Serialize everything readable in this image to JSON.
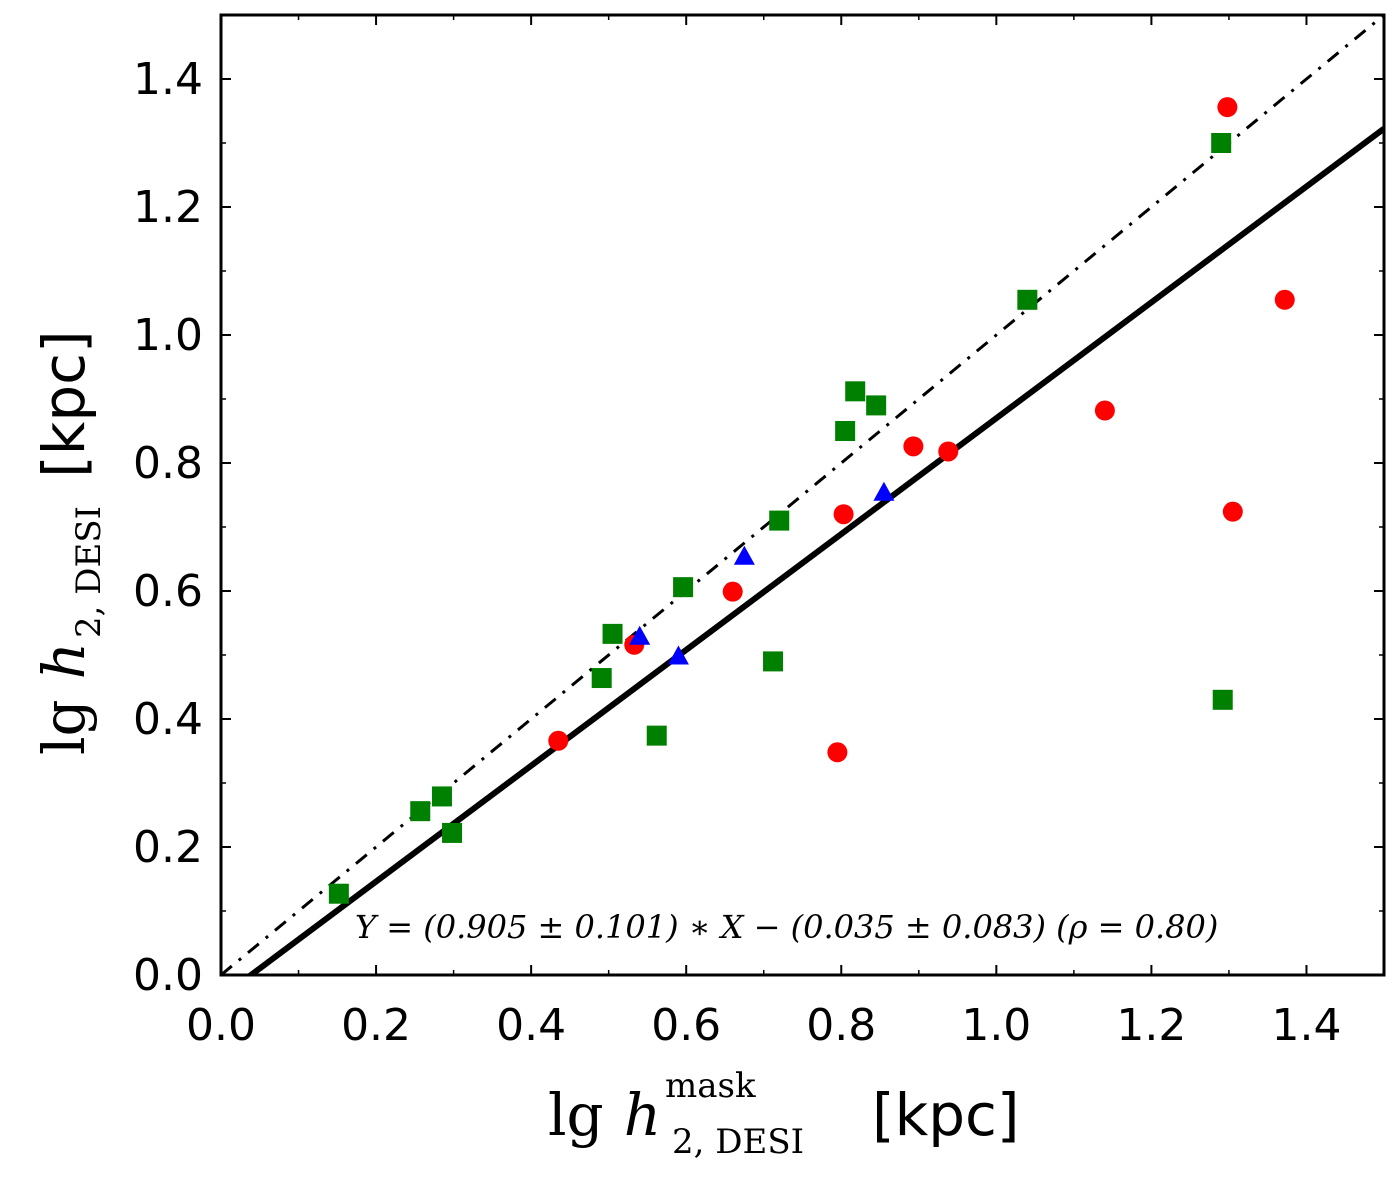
{
  "chart_data": {
    "type": "scatter",
    "title": "",
    "xlabel": {
      "prefix": "lg",
      "variable": "h",
      "subscript": "2, DESI",
      "superscript": "mask",
      "unit": "[kpc]"
    },
    "ylabel": {
      "prefix": "lg",
      "variable": "h",
      "subscript": "2, DESI",
      "unit": "[kpc]"
    },
    "xlim": [
      0.0,
      1.5
    ],
    "ylim": [
      0.0,
      1.5
    ],
    "xticks": [
      0.0,
      0.2,
      0.4,
      0.6,
      0.8,
      1.0,
      1.2,
      1.4
    ],
    "yticks": [
      0.0,
      0.2,
      0.4,
      0.6,
      0.8,
      1.0,
      1.2,
      1.4
    ],
    "xtick_labels": [
      "0.0",
      "0.2",
      "0.4",
      "0.6",
      "0.8",
      "1.0",
      "1.2",
      "1.4"
    ],
    "ytick_labels": [
      "0.0",
      "0.2",
      "0.4",
      "0.6",
      "0.8",
      "1.0",
      "1.2",
      "1.4"
    ],
    "grid": false,
    "series": [
      {
        "name": "red circles",
        "marker": "circle",
        "color": "#ff0000",
        "points": [
          [
            0.435,
            0.366
          ],
          [
            0.533,
            0.516
          ],
          [
            0.66,
            0.599
          ],
          [
            0.795,
            0.348
          ],
          [
            0.803,
            0.72
          ],
          [
            0.893,
            0.826
          ],
          [
            0.938,
            0.818
          ],
          [
            1.14,
            0.882
          ],
          [
            1.298,
            1.356
          ],
          [
            1.305,
            0.724
          ],
          [
            1.372,
            1.055
          ]
        ]
      },
      {
        "name": "green squares",
        "marker": "square",
        "color": "#008000",
        "points": [
          [
            0.152,
            0.127
          ],
          [
            0.257,
            0.256
          ],
          [
            0.285,
            0.279
          ],
          [
            0.298,
            0.222
          ],
          [
            0.491,
            0.464
          ],
          [
            0.505,
            0.533
          ],
          [
            0.562,
            0.374
          ],
          [
            0.596,
            0.606
          ],
          [
            0.712,
            0.49
          ],
          [
            0.72,
            0.71
          ],
          [
            0.805,
            0.85
          ],
          [
            0.818,
            0.912
          ],
          [
            0.845,
            0.89
          ],
          [
            1.04,
            1.055
          ],
          [
            1.29,
            1.3
          ],
          [
            1.292,
            0.43
          ]
        ]
      },
      {
        "name": "blue triangles",
        "marker": "triangle",
        "color": "#0000ff",
        "points": [
          [
            0.54,
            0.527
          ],
          [
            0.59,
            0.496
          ],
          [
            0.675,
            0.652
          ],
          [
            0.855,
            0.752
          ]
        ]
      }
    ],
    "lines": [
      {
        "name": "fit",
        "style": "solid",
        "slope": 0.905,
        "intercept": -0.035,
        "color": "#000000"
      },
      {
        "name": "one-to-one",
        "style": "dash-dot",
        "slope": 1.0,
        "intercept": 0.0,
        "color": "#000000"
      }
    ],
    "annotation": "Y = (0.905 ± 0.101) ∗ X − (0.035 ± 0.083) (ρ = 0.80)"
  }
}
